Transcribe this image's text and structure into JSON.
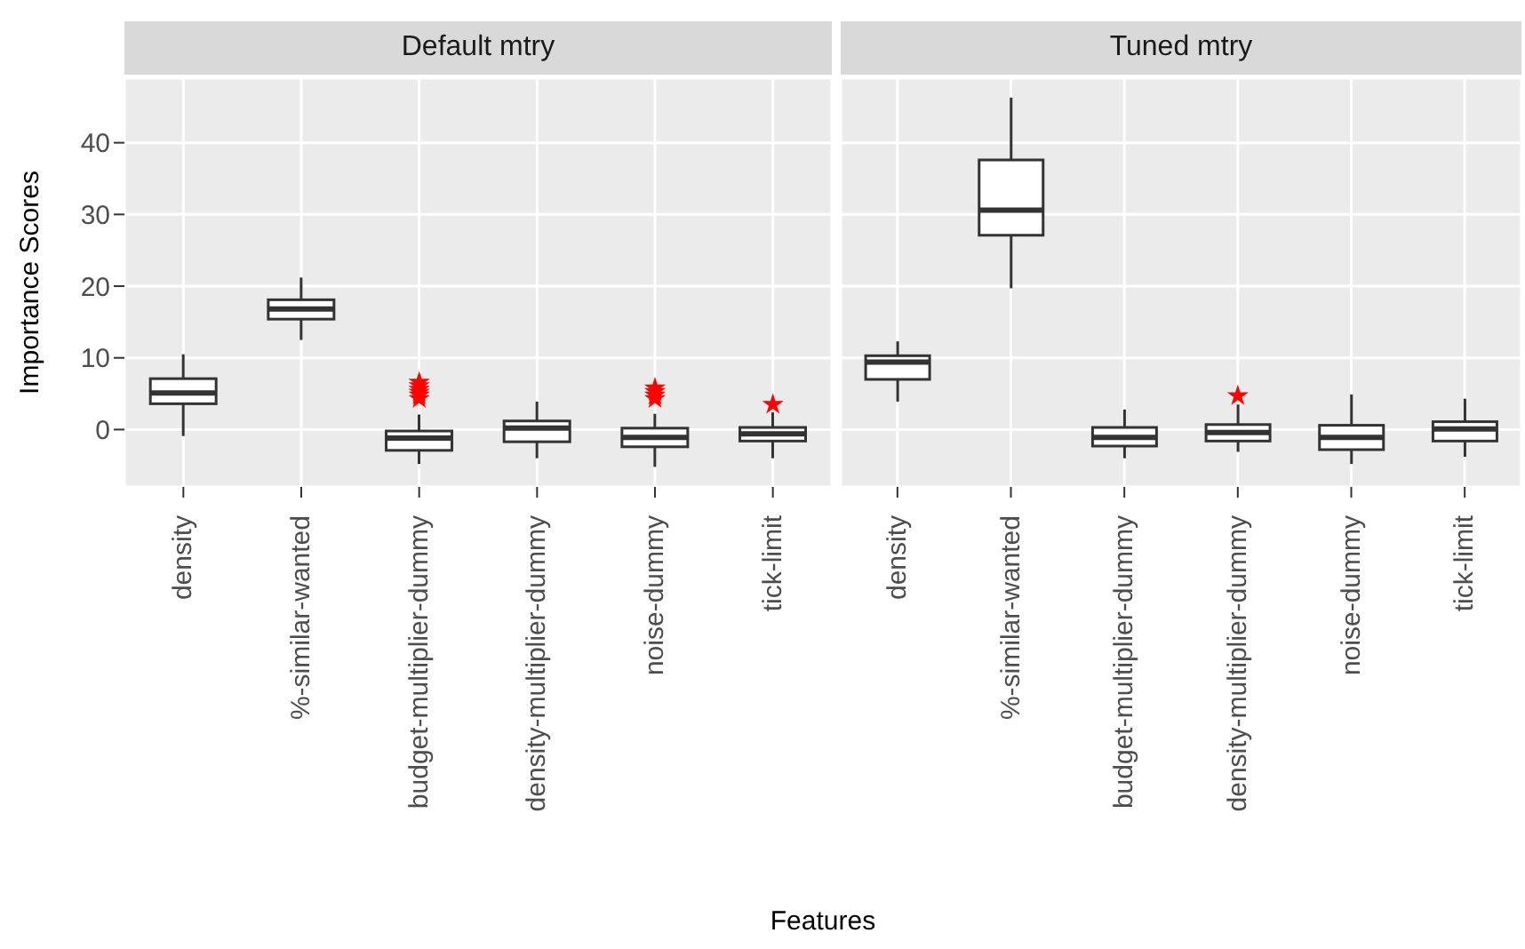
{
  "chart_data": [
    {
      "type": "box",
      "title": "Default mtry",
      "xlabel": "Features",
      "ylabel": "Importance Scores",
      "categories": [
        "density",
        "%-similar-wanted",
        "budget-multiplier-dummy",
        "density-multiplier-dummy",
        "noise-dummy",
        "tick-limit"
      ],
      "boxes": [
        {
          "low": -0.9,
          "q1": 3.6,
          "median": 5.1,
          "q3": 7.1,
          "high": 10.5
        },
        {
          "low": 12.5,
          "q1": 15.4,
          "median": 16.8,
          "q3": 18.1,
          "high": 21.2
        },
        {
          "low": -4.8,
          "q1": -2.9,
          "median": -1.2,
          "q3": -0.2,
          "high": 2.1,
          "outliers": [
            4.3,
            4.8,
            5.2,
            5.6,
            6.1,
            6.6
          ]
        },
        {
          "low": -4.0,
          "q1": -1.7,
          "median": 0.2,
          "q3": 1.2,
          "high": 3.9
        },
        {
          "low": -5.2,
          "q1": -2.4,
          "median": -1.1,
          "q3": 0.2,
          "high": 2.2,
          "outliers": [
            4.3,
            4.8,
            5.3,
            5.8
          ]
        },
        {
          "low": -4.0,
          "q1": -1.6,
          "median": -0.6,
          "q3": 0.3,
          "high": 2.4,
          "outliers": [
            3.5
          ]
        }
      ],
      "ylim": [
        -8,
        49
      ],
      "yticks": [
        0,
        10,
        20,
        30,
        40
      ],
      "grid": true,
      "marker": "star"
    },
    {
      "type": "box",
      "title": "Tuned mtry",
      "categories": [
        "density",
        "%-similar-wanted",
        "budget-multiplier-dummy",
        "density-multiplier-dummy",
        "noise-dummy",
        "tick-limit"
      ],
      "boxes": [
        {
          "low": 3.9,
          "q1": 7.0,
          "median": 9.4,
          "q3": 10.3,
          "high": 12.3
        },
        {
          "low": 19.7,
          "q1": 27.1,
          "median": 30.6,
          "q3": 37.6,
          "high": 46.3
        },
        {
          "low": -4.0,
          "q1": -2.3,
          "median": -1.1,
          "q3": 0.3,
          "high": 2.8
        },
        {
          "low": -3.1,
          "q1": -1.6,
          "median": -0.4,
          "q3": 0.7,
          "high": 3.5,
          "outliers": [
            4.7
          ]
        },
        {
          "low": -4.8,
          "q1": -2.8,
          "median": -1.1,
          "q3": 0.6,
          "high": 4.9
        },
        {
          "low": -3.8,
          "q1": -1.6,
          "median": 0.1,
          "q3": 1.1,
          "high": 4.3
        }
      ],
      "ylim": [
        -8,
        49
      ],
      "yticks": [
        0,
        10,
        20,
        30,
        40
      ],
      "grid": true,
      "marker": "star",
      "tick_labels": "x"
    }
  ]
}
